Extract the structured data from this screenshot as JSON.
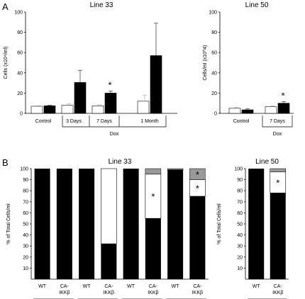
{
  "panel_labels": {
    "a": "A",
    "b": "B"
  },
  "colors": {
    "wt": "#ffffff",
    "ca": "#000000",
    "star_region": "#ffffff",
    "gray_region": "#999999",
    "axis": "#000000"
  },
  "chart_data": [
    {
      "id": "a33",
      "type": "bar",
      "title": "Line 33",
      "ylabel": "Cells (x10⁴/ml)",
      "ylim": [
        0,
        100
      ],
      "yticks": [
        "0",
        "20",
        "40",
        "60",
        "80",
        "100"
      ],
      "categories": [
        "Control",
        "3 Days",
        "7 Days",
        "1 Month"
      ],
      "group_label": "Dox",
      "series": [
        {
          "values": [
            7,
            8,
            7.5,
            12
          ],
          "errors": [
            0.5,
            1.5,
            1,
            6
          ]
        },
        {
          "values": [
            7.5,
            30.5,
            20,
            57
          ],
          "errors": [
            0.5,
            12,
            2,
            32
          ]
        }
      ],
      "significance": [
        "",
        "",
        "*",
        ""
      ]
    },
    {
      "id": "a50",
      "type": "bar",
      "title": "Line 50",
      "ylabel": "Cells/ml (x10^4)",
      "ylim": [
        0,
        100
      ],
      "yticks": [
        "0",
        "20",
        "40",
        "60",
        "80",
        "100"
      ],
      "categories": [
        "Control",
        "7 Days"
      ],
      "group_label": "Dox",
      "series": [
        {
          "values": [
            5,
            6.5
          ],
          "errors": [
            1,
            1
          ]
        },
        {
          "values": [
            3.5,
            10
          ],
          "errors": [
            1,
            1.5
          ]
        }
      ],
      "significance": [
        "",
        "*"
      ]
    },
    {
      "id": "b33",
      "type": "bar",
      "stacked": true,
      "title": "Line 33",
      "ylabel": "% of Total Cells/ml",
      "ylim": [
        0,
        100
      ],
      "yticks": [
        "10",
        "20",
        "30",
        "40",
        "50",
        "60",
        "70",
        "80",
        "90",
        "100"
      ],
      "bars": [
        {
          "label": "WT",
          "black": 100,
          "white": 0,
          "gray": 0,
          "white_star": "",
          "gray_star": ""
        },
        {
          "label": "CA-\nIKKβ",
          "black": 100,
          "white": 0,
          "gray": 0,
          "white_star": "",
          "gray_star": ""
        },
        {
          "label": "WT",
          "black": 100,
          "white": 0,
          "gray": 0,
          "white_star": "",
          "gray_star": ""
        },
        {
          "label": "CA-\nIKKβ",
          "black": 32,
          "white": 68,
          "gray": 0,
          "white_star": "",
          "gray_star": ""
        },
        {
          "label": "WT",
          "black": 100,
          "white": 0,
          "gray": 0,
          "white_star": "",
          "gray_star": ""
        },
        {
          "label": "CA-\nIKKβ",
          "black": 55,
          "white": 40,
          "gray": 5,
          "white_star": "*",
          "gray_star": ""
        },
        {
          "label": "WT",
          "black": 99,
          "white": 0,
          "gray": 1,
          "white_star": "",
          "gray_star": ""
        },
        {
          "label": "CA-\nIKKβ",
          "black": 75,
          "white": 15,
          "gray": 10,
          "white_star": "*",
          "gray_star": "*"
        }
      ],
      "groups": [
        "No Dox",
        "3 Days Dox",
        "7 Days Dox",
        "1 month Dox"
      ]
    },
    {
      "id": "b50",
      "type": "bar",
      "stacked": true,
      "title": "Line 50",
      "ylabel": "% of Total Cells/ml",
      "ylim": [
        0,
        100
      ],
      "yticks": [
        "10",
        "20",
        "30",
        "40",
        "50",
        "60",
        "70",
        "80",
        "90",
        "100"
      ],
      "bars": [
        {
          "label": "WT",
          "black": 100,
          "white": 0,
          "gray": 0,
          "white_star": "",
          "gray_star": ""
        },
        {
          "label": "CA-\nIKKβ",
          "black": 78,
          "white": 19,
          "gray": 3,
          "white_star": "*",
          "gray_star": ""
        }
      ],
      "groups": [
        "7 Days Dox"
      ]
    }
  ]
}
